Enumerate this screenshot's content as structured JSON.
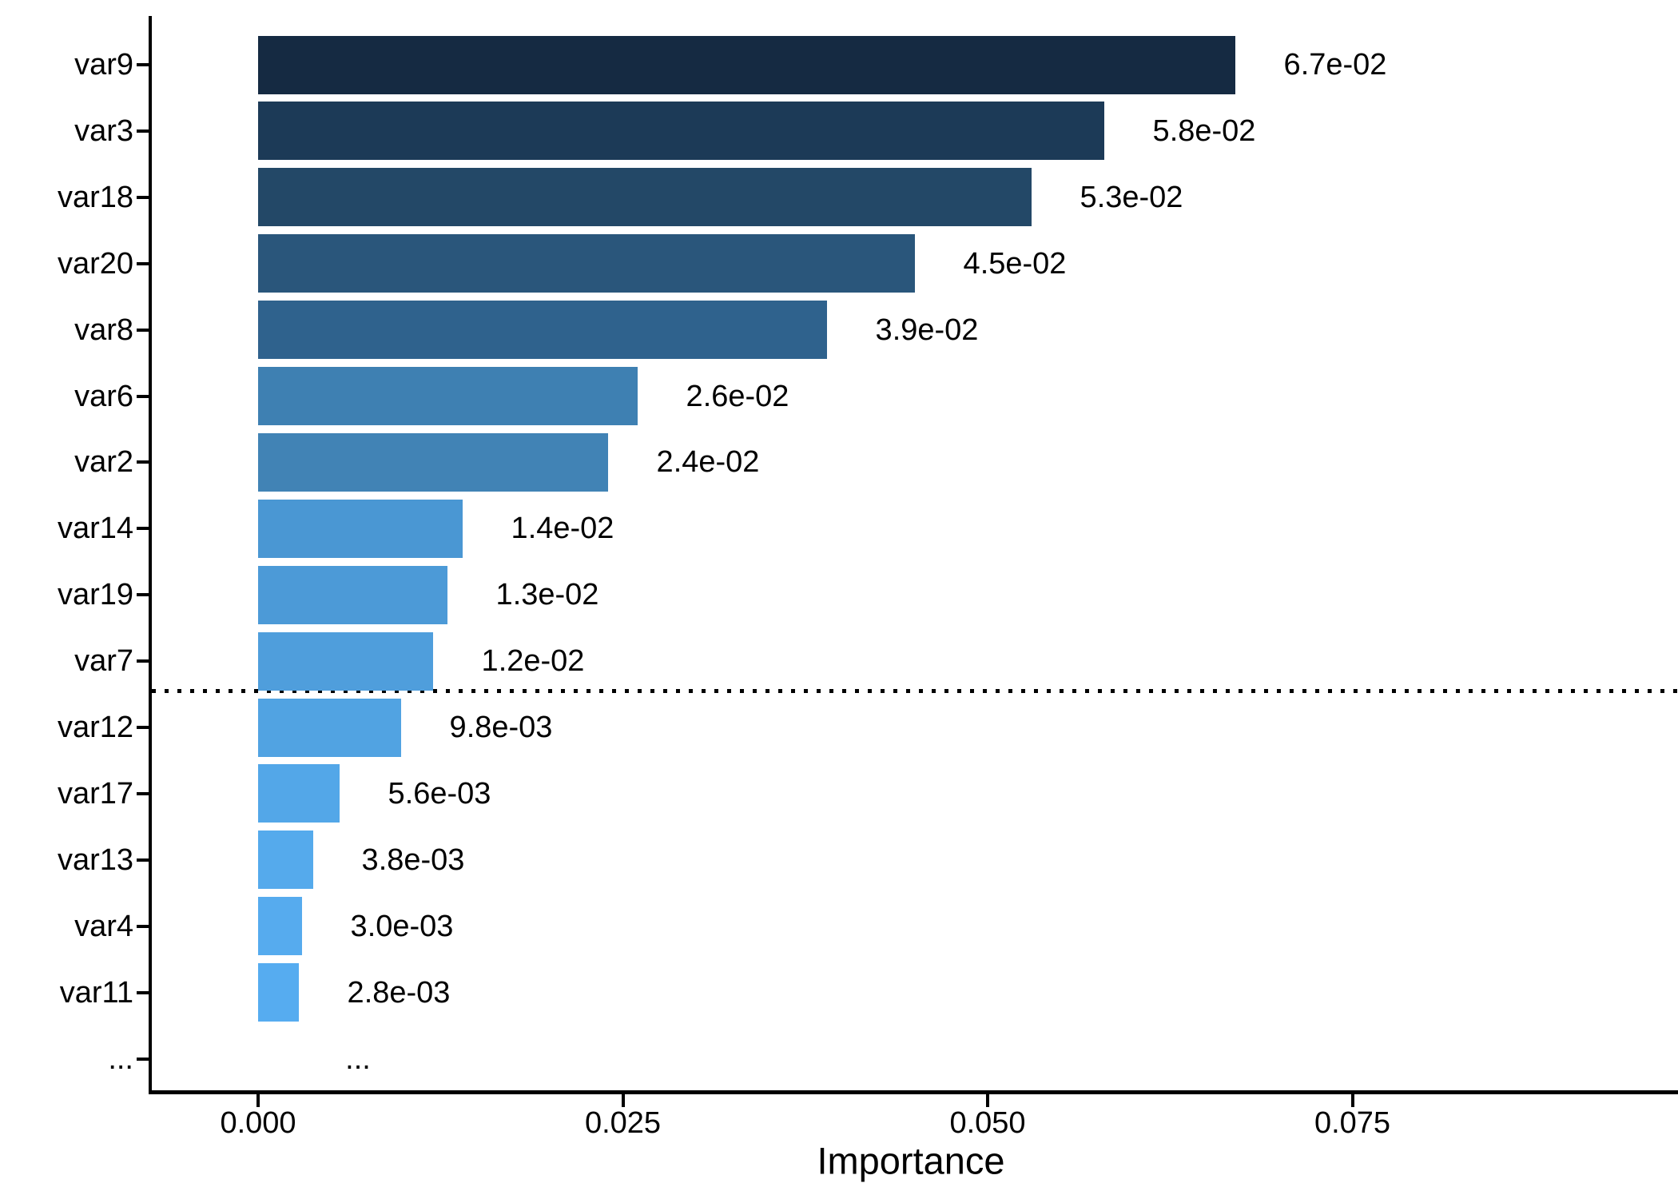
{
  "chart_data": {
    "type": "bar",
    "orientation": "horizontal",
    "title": "",
    "xlabel": "Importance",
    "ylabel": "",
    "xlim": [
      -0.0074,
      0.0973
    ],
    "grid": "off",
    "legend": "none",
    "x_ticks": {
      "labels": [
        "0.000",
        "0.025",
        "0.050",
        "0.075"
      ],
      "values": [
        0,
        0.025,
        0.05,
        0.075
      ]
    },
    "categories": [
      "var9",
      "var3",
      "var18",
      "var20",
      "var8",
      "var6",
      "var2",
      "var14",
      "var19",
      "var7",
      "var12",
      "var17",
      "var13",
      "var4",
      "var11",
      "..."
    ],
    "rows": [
      {
        "label": "var9",
        "value": 0.067,
        "value_label": "6.7e-02",
        "color": "#152A42"
      },
      {
        "label": "var3",
        "value": 0.058,
        "value_label": "5.8e-02",
        "color": "#1C3A57"
      },
      {
        "label": "var18",
        "value": 0.053,
        "value_label": "5.3e-02",
        "color": "#234867"
      },
      {
        "label": "var20",
        "value": 0.045,
        "value_label": "4.5e-02",
        "color": "#2A567B"
      },
      {
        "label": "var8",
        "value": 0.039,
        "value_label": "3.9e-02",
        "color": "#2F628D"
      },
      {
        "label": "var6",
        "value": 0.026,
        "value_label": "2.6e-02",
        "color": "#3E80B2"
      },
      {
        "label": "var2",
        "value": 0.024,
        "value_label": "2.4e-02",
        "color": "#4183B5"
      },
      {
        "label": "var14",
        "value": 0.014,
        "value_label": "1.4e-02",
        "color": "#4A97D3"
      },
      {
        "label": "var19",
        "value": 0.013,
        "value_label": "1.3e-02",
        "color": "#4C9AD7"
      },
      {
        "label": "var7",
        "value": 0.012,
        "value_label": "1.2e-02",
        "color": "#4F9EDC"
      },
      {
        "label": "var12",
        "value": 0.0098,
        "value_label": "9.8e-03",
        "color": "#51A3E2"
      },
      {
        "label": "var17",
        "value": 0.0056,
        "value_label": "5.6e-03",
        "color": "#53A7E8"
      },
      {
        "label": "var13",
        "value": 0.0038,
        "value_label": "3.8e-03",
        "color": "#55AAEC"
      },
      {
        "label": "var4",
        "value": 0.003,
        "value_label": "3.0e-03",
        "color": "#56ABEE"
      },
      {
        "label": "var11",
        "value": 0.0028,
        "value_label": "2.8e-03",
        "color": "#56ACF0"
      },
      {
        "label": "...",
        "value": null,
        "value_label": "...",
        "color": null
      }
    ],
    "threshold_line": {
      "position": "between var7 and var12",
      "style": "dotted",
      "color": "#000000"
    },
    "colors": {
      "gradient_high_value": "#152A42",
      "gradient_low_value": "#56ACF0",
      "text": "#000000",
      "axis": "#000000",
      "background": "#FFFFFF"
    }
  }
}
